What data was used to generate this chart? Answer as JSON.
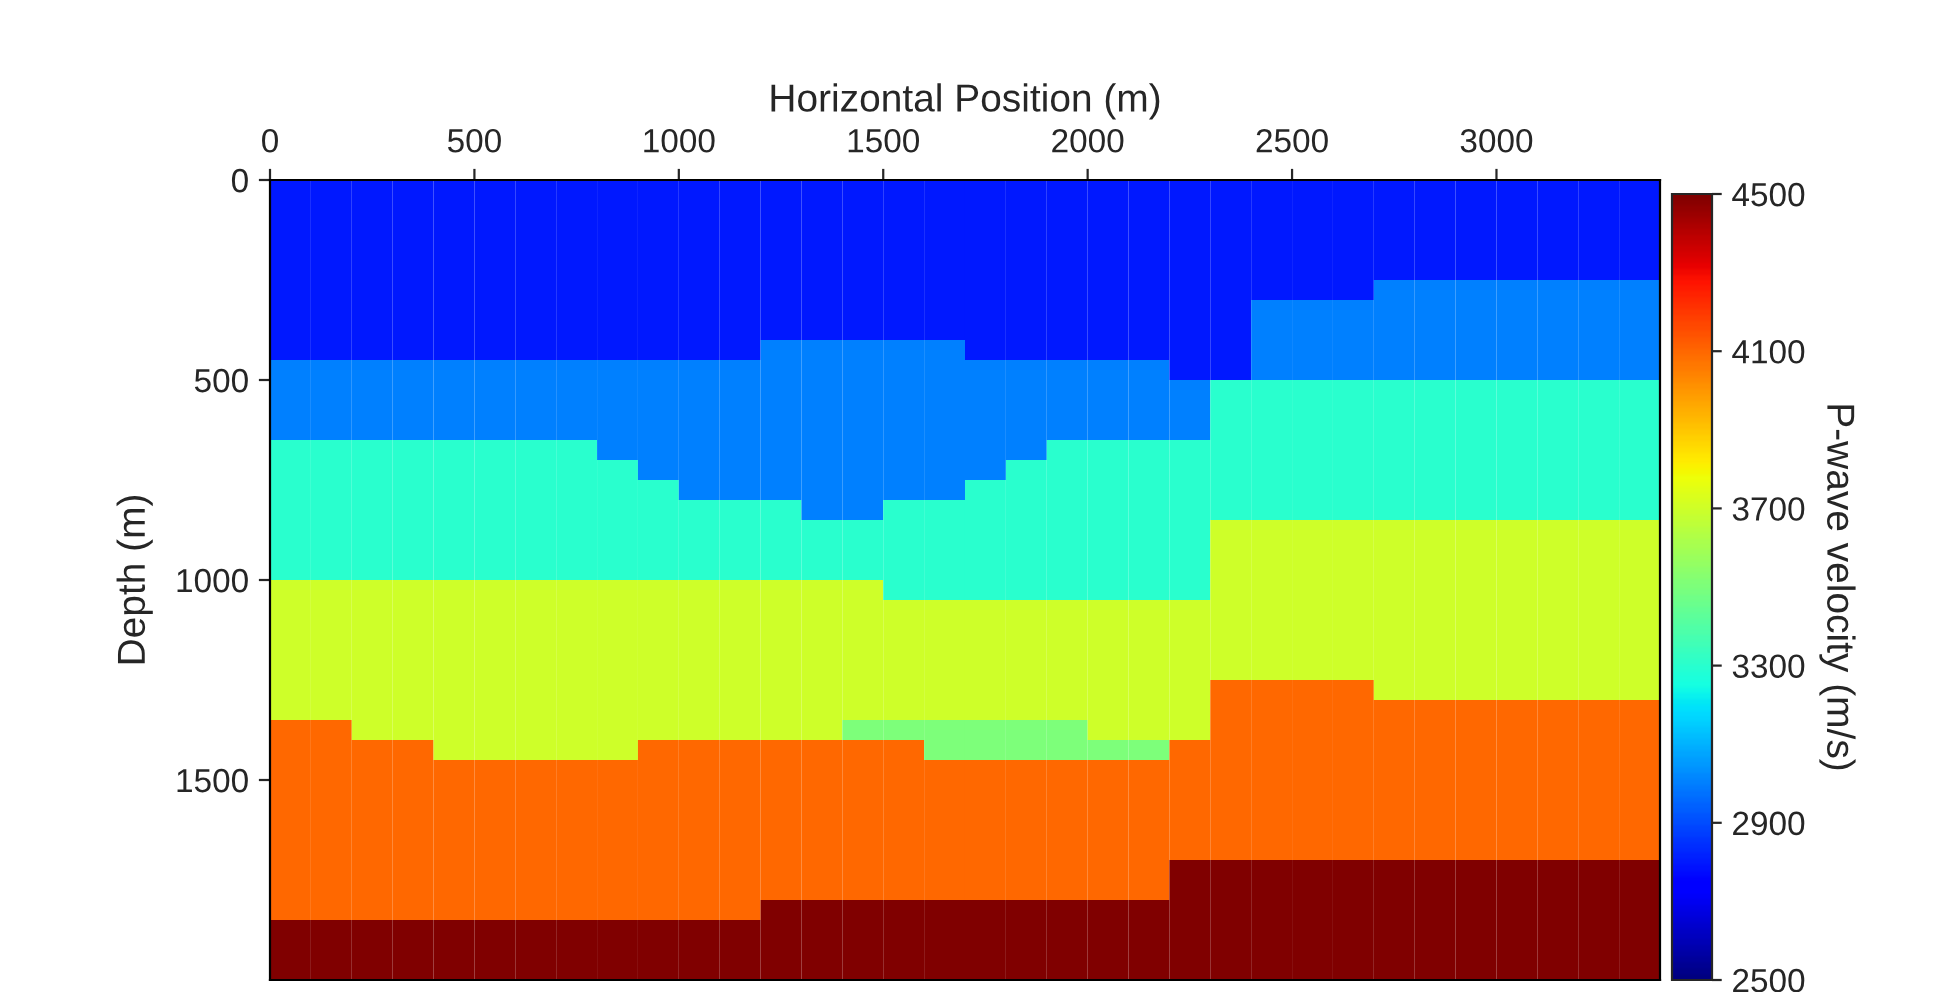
{
  "chart_data": {
    "type": "heatmap",
    "xlabel": "Horizontal Position (m)",
    "ylabel": "Depth (m)",
    "clabel": "P-wave velocity (m/s)",
    "xlim": [
      0,
      3400
    ],
    "xticks": [
      0,
      500,
      1000,
      1500,
      2000,
      2500,
      3000
    ],
    "ylim": [
      2000,
      0
    ],
    "yticks": [
      0,
      500,
      1000,
      1500
    ],
    "clim": [
      2500,
      4500
    ],
    "cticks": [
      2500,
      2900,
      3300,
      3700,
      4100,
      4500
    ],
    "cells": [
      [
        2800,
        2800,
        2800,
        2800,
        2800,
        2800,
        2800,
        2800,
        2800,
        2800,
        2800,
        2800,
        2800,
        2800,
        2800,
        2800,
        2800,
        2800,
        2800,
        2800,
        2800,
        2800,
        2800,
        2800,
        2800,
        2800,
        2800,
        2800,
        2800,
        2800,
        2800,
        2800,
        2800,
        2800
      ],
      [
        2800,
        2800,
        2800,
        2800,
        2800,
        2800,
        2800,
        2800,
        2800,
        2800,
        2800,
        2800,
        2800,
        2800,
        2800,
        2800,
        2800,
        2800,
        2800,
        2800,
        2800,
        2800,
        2800,
        2800,
        2800,
        2800,
        2800,
        2800,
        2800,
        2800,
        2800,
        2800,
        2800,
        2800
      ],
      [
        2800,
        2800,
        2800,
        2800,
        2800,
        2800,
        2800,
        2800,
        2800,
        2800,
        2800,
        2800,
        2800,
        2800,
        2800,
        2800,
        2800,
        2800,
        2800,
        2800,
        2800,
        2800,
        2800,
        2800,
        2800,
        2800,
        2800,
        2800,
        2800,
        2800,
        2800,
        2800,
        2800,
        2800
      ],
      [
        2800,
        2800,
        2800,
        2800,
        2800,
        2800,
        2800,
        2800,
        2800,
        2800,
        2800,
        2800,
        2800,
        2800,
        2800,
        2800,
        2800,
        2800,
        2800,
        2800,
        2800,
        2800,
        2800,
        2800,
        2800,
        2800,
        2800,
        2800,
        2800,
        2800,
        2800,
        2800,
        2800,
        2800
      ],
      [
        2800,
        2800,
        2800,
        2800,
        2800,
        2800,
        2800,
        2800,
        2800,
        2800,
        2800,
        2800,
        2800,
        2800,
        2800,
        2800,
        2800,
        2800,
        2800,
        2800,
        2800,
        2800,
        2800,
        2800,
        2800,
        2800,
        2800,
        2800,
        2800,
        2800,
        2800,
        2800,
        2800,
        2800
      ],
      [
        2800,
        2800,
        2800,
        2800,
        2800,
        2800,
        2800,
        2800,
        2800,
        2800,
        2800,
        2800,
        2800,
        2800,
        2800,
        2800,
        2800,
        2800,
        2800,
        2800,
        2800,
        2800,
        2800,
        2800,
        2800,
        2800,
        2800,
        3000,
        3000,
        3000,
        3000,
        3000,
        3000,
        3000
      ],
      [
        2800,
        2800,
        2800,
        2800,
        2800,
        2800,
        2800,
        2800,
        2800,
        2800,
        2800,
        2800,
        2800,
        2800,
        2800,
        2800,
        2800,
        2800,
        2800,
        2800,
        2800,
        2800,
        2800,
        2800,
        3000,
        3000,
        3000,
        3000,
        3000,
        3000,
        3000,
        3000,
        3000,
        3000
      ],
      [
        2800,
        2800,
        2800,
        2800,
        2800,
        2800,
        2800,
        2800,
        2800,
        2800,
        2800,
        2800,
        2800,
        2800,
        2800,
        2800,
        2800,
        2800,
        2800,
        2800,
        2800,
        2800,
        2800,
        2800,
        3000,
        3000,
        3000,
        3000,
        3000,
        3000,
        3000,
        3000,
        3000,
        3000
      ],
      [
        2800,
        2800,
        2800,
        2800,
        2800,
        2800,
        2800,
        2800,
        2800,
        2800,
        2800,
        2800,
        3000,
        3000,
        3000,
        3000,
        3000,
        2800,
        2800,
        2800,
        2800,
        2800,
        2800,
        2800,
        3000,
        3000,
        3000,
        3000,
        3000,
        3000,
        3000,
        3000,
        3000,
        3000
      ],
      [
        3000,
        3000,
        3000,
        3000,
        3000,
        3000,
        3000,
        3000,
        3000,
        3000,
        3000,
        3000,
        3000,
        3000,
        3000,
        3000,
        3000,
        3000,
        3000,
        3000,
        3000,
        3000,
        2800,
        2800,
        3000,
        3000,
        3000,
        3000,
        3000,
        3000,
        3000,
        3000,
        3000,
        3000
      ],
      [
        3000,
        3000,
        3000,
        3000,
        3000,
        3000,
        3000,
        3000,
        3000,
        3000,
        3000,
        3000,
        3000,
        3000,
        3000,
        3000,
        3000,
        3000,
        3000,
        3000,
        3000,
        3000,
        3000,
        3300,
        3300,
        3300,
        3300,
        3300,
        3300,
        3300,
        3300,
        3300,
        3300,
        3300
      ],
      [
        3000,
        3000,
        3000,
        3000,
        3000,
        3000,
        3000,
        3000,
        3000,
        3000,
        3000,
        3000,
        3000,
        3000,
        3000,
        3000,
        3000,
        3000,
        3000,
        3000,
        3000,
        3000,
        3000,
        3300,
        3300,
        3300,
        3300,
        3300,
        3300,
        3300,
        3300,
        3300,
        3300,
        3300
      ],
      [
        3000,
        3000,
        3000,
        3000,
        3000,
        3000,
        3000,
        3000,
        3000,
        3000,
        3000,
        3000,
        3000,
        3000,
        3000,
        3000,
        3000,
        3000,
        3000,
        3000,
        3000,
        3000,
        3000,
        3300,
        3300,
        3300,
        3300,
        3300,
        3300,
        3300,
        3300,
        3300,
        3300,
        3300
      ],
      [
        3300,
        3300,
        3300,
        3300,
        3300,
        3300,
        3300,
        3300,
        3000,
        3000,
        3000,
        3000,
        3000,
        3000,
        3000,
        3000,
        3000,
        3000,
        3000,
        3300,
        3300,
        3300,
        3300,
        3300,
        3300,
        3300,
        3300,
        3300,
        3300,
        3300,
        3300,
        3300,
        3300,
        3300
      ],
      [
        3300,
        3300,
        3300,
        3300,
        3300,
        3300,
        3300,
        3300,
        3300,
        3000,
        3000,
        3000,
        3000,
        3000,
        3000,
        3000,
        3000,
        3000,
        3300,
        3300,
        3300,
        3300,
        3300,
        3300,
        3300,
        3300,
        3300,
        3300,
        3300,
        3300,
        3300,
        3300,
        3300,
        3300
      ],
      [
        3300,
        3300,
        3300,
        3300,
        3300,
        3300,
        3300,
        3300,
        3300,
        3300,
        3000,
        3000,
        3000,
        3000,
        3000,
        3000,
        3000,
        3300,
        3300,
        3300,
        3300,
        3300,
        3300,
        3300,
        3300,
        3300,
        3300,
        3300,
        3300,
        3300,
        3300,
        3300,
        3300,
        3300
      ],
      [
        3300,
        3300,
        3300,
        3300,
        3300,
        3300,
        3300,
        3300,
        3300,
        3300,
        3300,
        3300,
        3300,
        3000,
        3000,
        3300,
        3300,
        3300,
        3300,
        3300,
        3300,
        3300,
        3300,
        3300,
        3300,
        3300,
        3300,
        3300,
        3300,
        3300,
        3300,
        3300,
        3300,
        3300
      ],
      [
        3300,
        3300,
        3300,
        3300,
        3300,
        3300,
        3300,
        3300,
        3300,
        3300,
        3300,
        3300,
        3300,
        3300,
        3300,
        3300,
        3300,
        3300,
        3300,
        3300,
        3300,
        3300,
        3300,
        3700,
        3700,
        3700,
        3700,
        3700,
        3700,
        3700,
        3700,
        3700,
        3700,
        3700
      ],
      [
        3300,
        3300,
        3300,
        3300,
        3300,
        3300,
        3300,
        3300,
        3300,
        3300,
        3300,
        3300,
        3300,
        3300,
        3300,
        3300,
        3300,
        3300,
        3300,
        3300,
        3300,
        3300,
        3300,
        3700,
        3700,
        3700,
        3700,
        3700,
        3700,
        3700,
        3700,
        3700,
        3700,
        3700
      ],
      [
        3300,
        3300,
        3300,
        3300,
        3300,
        3300,
        3300,
        3300,
        3300,
        3300,
        3300,
        3300,
        3300,
        3300,
        3300,
        3300,
        3300,
        3300,
        3300,
        3300,
        3300,
        3300,
        3300,
        3700,
        3700,
        3700,
        3700,
        3700,
        3700,
        3700,
        3700,
        3700,
        3700,
        3700
      ],
      [
        3700,
        3700,
        3700,
        3700,
        3700,
        3700,
        3700,
        3700,
        3700,
        3700,
        3700,
        3700,
        3700,
        3700,
        3700,
        3300,
        3300,
        3300,
        3300,
        3300,
        3300,
        3300,
        3300,
        3700,
        3700,
        3700,
        3700,
        3700,
        3700,
        3700,
        3700,
        3700,
        3700,
        3700
      ],
      [
        3700,
        3700,
        3700,
        3700,
        3700,
        3700,
        3700,
        3700,
        3700,
        3700,
        3700,
        3700,
        3700,
        3700,
        3700,
        3700,
        3700,
        3700,
        3700,
        3700,
        3700,
        3700,
        3700,
        3700,
        3700,
        3700,
        3700,
        3700,
        3700,
        3700,
        3700,
        3700,
        3700,
        3700
      ],
      [
        3700,
        3700,
        3700,
        3700,
        3700,
        3700,
        3700,
        3700,
        3700,
        3700,
        3700,
        3700,
        3700,
        3700,
        3700,
        3700,
        3700,
        3700,
        3700,
        3700,
        3700,
        3700,
        3700,
        3700,
        3700,
        3700,
        3700,
        3700,
        3700,
        3700,
        3700,
        3700,
        3700,
        3700
      ],
      [
        3700,
        3700,
        3700,
        3700,
        3700,
        3700,
        3700,
        3700,
        3700,
        3700,
        3700,
        3700,
        3700,
        3700,
        3700,
        3700,
        3700,
        3700,
        3700,
        3700,
        3700,
        3700,
        3700,
        3700,
        3700,
        3700,
        3700,
        3700,
        3700,
        3700,
        3700,
        3700,
        3700,
        3700
      ],
      [
        3700,
        3700,
        3700,
        3700,
        3700,
        3700,
        3700,
        3700,
        3700,
        3700,
        3700,
        3700,
        3700,
        3700,
        3700,
        3700,
        3700,
        3700,
        3700,
        3700,
        3700,
        3700,
        3700,
        3700,
        3700,
        3700,
        3700,
        3700,
        3700,
        3700,
        3700,
        3700,
        3700,
        3700
      ],
      [
        3700,
        3700,
        3700,
        3700,
        3700,
        3700,
        3700,
        3700,
        3700,
        3700,
        3700,
        3700,
        3700,
        3700,
        3700,
        3700,
        3700,
        3700,
        3700,
        3700,
        3700,
        3700,
        3700,
        4100,
        4100,
        4100,
        4100,
        3700,
        3700,
        3700,
        3700,
        3700,
        3700,
        3700
      ],
      [
        3700,
        3700,
        3700,
        3700,
        3700,
        3700,
        3700,
        3700,
        3700,
        3700,
        3700,
        3700,
        3700,
        3700,
        3700,
        3700,
        3700,
        3700,
        3700,
        3700,
        3700,
        3700,
        3700,
        4100,
        4100,
        4100,
        4100,
        4100,
        4100,
        4100,
        4100,
        4100,
        4100,
        4100
      ],
      [
        4100,
        4100,
        3700,
        3700,
        3700,
        3700,
        3700,
        3700,
        3700,
        3700,
        3700,
        3700,
        3700,
        3700,
        3500,
        3500,
        3500,
        3500,
        3500,
        3500,
        3700,
        3700,
        3700,
        4100,
        4100,
        4100,
        4100,
        4100,
        4100,
        4100,
        4100,
        4100,
        4100,
        4100
      ],
      [
        4100,
        4100,
        4100,
        4100,
        3700,
        3700,
        3700,
        3700,
        3700,
        4100,
        4100,
        4100,
        4100,
        4100,
        4100,
        4100,
        3500,
        3500,
        3500,
        3500,
        3500,
        3500,
        4100,
        4100,
        4100,
        4100,
        4100,
        4100,
        4100,
        4100,
        4100,
        4100,
        4100,
        4100
      ],
      [
        4100,
        4100,
        4100,
        4100,
        4100,
        4100,
        4100,
        4100,
        4100,
        4100,
        4100,
        4100,
        4100,
        4100,
        4100,
        4100,
        4100,
        4100,
        4100,
        4100,
        4100,
        4100,
        4100,
        4100,
        4100,
        4100,
        4100,
        4100,
        4100,
        4100,
        4100,
        4100,
        4100,
        4100
      ],
      [
        4100,
        4100,
        4100,
        4100,
        4100,
        4100,
        4100,
        4100,
        4100,
        4100,
        4100,
        4100,
        4100,
        4100,
        4100,
        4100,
        4100,
        4100,
        4100,
        4100,
        4100,
        4100,
        4100,
        4100,
        4100,
        4100,
        4100,
        4100,
        4100,
        4100,
        4100,
        4100,
        4100,
        4100
      ],
      [
        4100,
        4100,
        4100,
        4100,
        4100,
        4100,
        4100,
        4100,
        4100,
        4100,
        4100,
        4100,
        4100,
        4100,
        4100,
        4100,
        4100,
        4100,
        4100,
        4100,
        4100,
        4100,
        4100,
        4100,
        4100,
        4100,
        4100,
        4100,
        4100,
        4100,
        4100,
        4100,
        4100,
        4100
      ],
      [
        4100,
        4100,
        4100,
        4100,
        4100,
        4100,
        4100,
        4100,
        4100,
        4100,
        4100,
        4100,
        4100,
        4100,
        4100,
        4100,
        4100,
        4100,
        4100,
        4100,
        4100,
        4100,
        4100,
        4100,
        4100,
        4100,
        4100,
        4100,
        4100,
        4100,
        4100,
        4100,
        4100,
        4100
      ],
      [
        4100,
        4100,
        4100,
        4100,
        4100,
        4100,
        4100,
        4100,
        4100,
        4100,
        4100,
        4100,
        4100,
        4100,
        4100,
        4100,
        4100,
        4100,
        4100,
        4100,
        4100,
        4100,
        4100,
        4100,
        4100,
        4100,
        4100,
        4100,
        4100,
        4100,
        4100,
        4100,
        4100,
        4100
      ],
      [
        4100,
        4100,
        4100,
        4100,
        4100,
        4100,
        4100,
        4100,
        4100,
        4100,
        4100,
        4100,
        4100,
        4100,
        4100,
        4100,
        4100,
        4100,
        4100,
        4100,
        4100,
        4100,
        4500,
        4500,
        4500,
        4500,
        4500,
        4500,
        4500,
        4500,
        4500,
        4500,
        4500,
        4500
      ],
      [
        4100,
        4100,
        4100,
        4100,
        4100,
        4100,
        4100,
        4100,
        4100,
        4100,
        4100,
        4100,
        4100,
        4100,
        4100,
        4100,
        4100,
        4100,
        4100,
        4100,
        4100,
        4100,
        4500,
        4500,
        4500,
        4500,
        4500,
        4500,
        4500,
        4500,
        4500,
        4500,
        4500,
        4500
      ],
      [
        4100,
        4100,
        4100,
        4100,
        4100,
        4100,
        4100,
        4100,
        4100,
        4100,
        4100,
        4100,
        4500,
        4500,
        4500,
        4500,
        4500,
        4500,
        4500,
        4500,
        4500,
        4500,
        4500,
        4500,
        4500,
        4500,
        4500,
        4500,
        4500,
        4500,
        4500,
        4500,
        4500,
        4500
      ],
      [
        4500,
        4500,
        4500,
        4500,
        4500,
        4500,
        4500,
        4500,
        4500,
        4500,
        4500,
        4500,
        4500,
        4500,
        4500,
        4500,
        4500,
        4500,
        4500,
        4500,
        4500,
        4500,
        4500,
        4500,
        4500,
        4500,
        4500,
        4500,
        4500,
        4500,
        4500,
        4500,
        4500,
        4500
      ],
      [
        4500,
        4500,
        4500,
        4500,
        4500,
        4500,
        4500,
        4500,
        4500,
        4500,
        4500,
        4500,
        4500,
        4500,
        4500,
        4500,
        4500,
        4500,
        4500,
        4500,
        4500,
        4500,
        4500,
        4500,
        4500,
        4500,
        4500,
        4500,
        4500,
        4500,
        4500,
        4500,
        4500,
        4500
      ],
      [
        4500,
        4500,
        4500,
        4500,
        4500,
        4500,
        4500,
        4500,
        4500,
        4500,
        4500,
        4500,
        4500,
        4500,
        4500,
        4500,
        4500,
        4500,
        4500,
        4500,
        4500,
        4500,
        4500,
        4500,
        4500,
        4500,
        4500,
        4500,
        4500,
        4500,
        4500,
        4500,
        4500,
        4500
      ]
    ]
  }
}
